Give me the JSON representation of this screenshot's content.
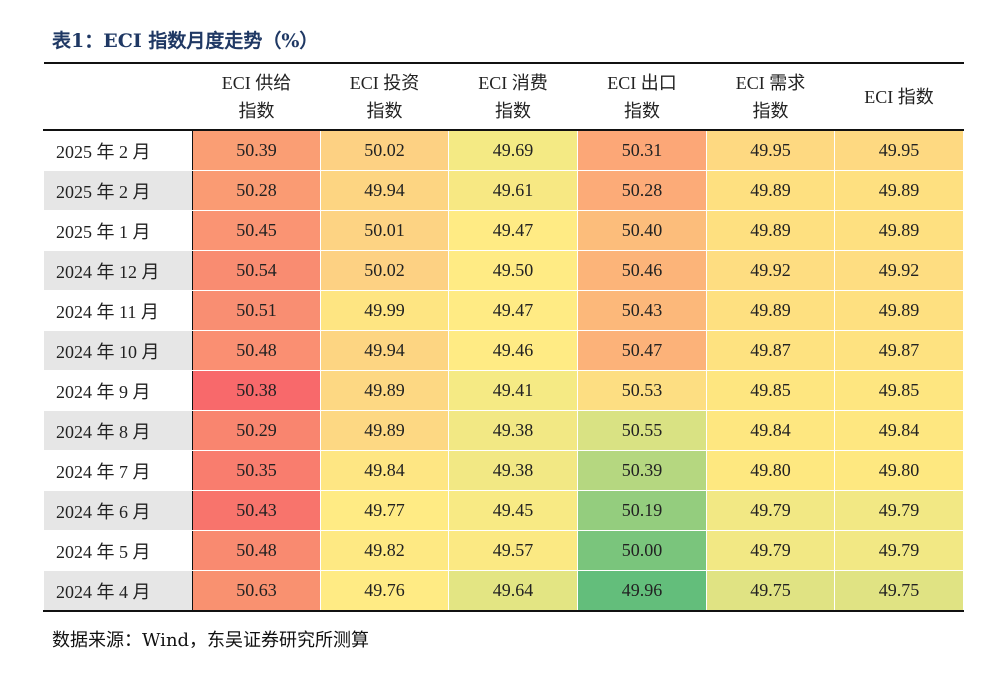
{
  "title": "表1：ECI 指数月度走势（%）",
  "columns": [
    {
      "line1": "ECI 供给",
      "line2": "指数"
    },
    {
      "line1": "ECI 投资",
      "line2": "指数"
    },
    {
      "line1": "ECI 消费",
      "line2": "指数"
    },
    {
      "line1": "ECI 出口",
      "line2": "指数"
    },
    {
      "line1": "ECI 需求",
      "line2": "指数"
    },
    {
      "line1": "ECI 指数",
      "line2": ""
    }
  ],
  "rows": [
    {
      "date": "2025 年 2 月",
      "values": [
        "50.39",
        "50.02",
        "49.69",
        "50.31",
        "49.95",
        "49.95"
      ],
      "colors": [
        "#fa9e74",
        "#fdd183",
        "#f4ea84",
        "#fca777",
        "#fed981",
        "#fed981"
      ]
    },
    {
      "date": "2025 年 2 月",
      "values": [
        "50.28",
        "49.94",
        "49.61",
        "50.28",
        "49.89",
        "49.89"
      ],
      "colors": [
        "#fa9b73",
        "#fdd582",
        "#f7e883",
        "#fcab78",
        "#fee080",
        "#fee080"
      ]
    },
    {
      "date": "2025 年 1 月",
      "values": [
        "50.45",
        "50.01",
        "49.47",
        "50.40",
        "49.89",
        "49.89"
      ],
      "colors": [
        "#fa9473",
        "#fdd383",
        "#ffeb84",
        "#fcbd7b",
        "#fee080",
        "#fee080"
      ]
    },
    {
      "date": "2024 年 12 月",
      "values": [
        "50.54",
        "50.02",
        "49.50",
        "50.46",
        "49.92",
        "49.92"
      ],
      "colors": [
        "#f98c71",
        "#fdd183",
        "#ffeb84",
        "#fcb479",
        "#fedd81",
        "#fedd81"
      ]
    },
    {
      "date": "2024 年 11 月",
      "values": [
        "50.51",
        "49.99",
        "49.47",
        "50.43",
        "49.89",
        "49.89"
      ],
      "colors": [
        "#f98e72",
        "#fee582",
        "#ffeb84",
        "#fcb87a",
        "#fee080",
        "#fee080"
      ]
    },
    {
      "date": "2024 年 10 月",
      "values": [
        "50.48",
        "49.94",
        "49.46",
        "50.47",
        "49.87",
        "49.87"
      ],
      "colors": [
        "#fa8f72",
        "#fdd582",
        "#ffeb84",
        "#fcb279",
        "#fee280",
        "#fee280"
      ]
    },
    {
      "date": "2024 年 9 月",
      "values": [
        "50.38",
        "49.89",
        "49.41",
        "50.53",
        "49.85",
        "49.85"
      ],
      "colors": [
        "#f8696b",
        "#fdd883",
        "#f5ea84",
        "#fdde82",
        "#fee680",
        "#fee680"
      ]
    },
    {
      "date": "2024 年 8 月",
      "values": [
        "50.29",
        "49.89",
        "49.38",
        "50.55",
        "49.84",
        "49.84"
      ],
      "colors": [
        "#f9856f",
        "#fdd883",
        "#f2e884",
        "#d9e283",
        "#fee780",
        "#fee780"
      ]
    },
    {
      "date": "2024 年 7 月",
      "values": [
        "50.35",
        "49.84",
        "49.38",
        "50.39",
        "49.80",
        "49.80"
      ],
      "colors": [
        "#f97d6e",
        "#fee683",
        "#f2e884",
        "#b5d780",
        "#fee880",
        "#fee880"
      ]
    },
    {
      "date": "2024 年 6 月",
      "values": [
        "50.43",
        "49.77",
        "49.45",
        "50.19",
        "49.79",
        "49.79"
      ],
      "colors": [
        "#f8746c",
        "#ffeb84",
        "#f8ea84",
        "#94cd7e",
        "#f2e884",
        "#f2e884"
      ]
    },
    {
      "date": "2024 年 5 月",
      "values": [
        "50.48",
        "49.82",
        "49.57",
        "50.00",
        "49.79",
        "49.79"
      ],
      "colors": [
        "#f98a70",
        "#fee983",
        "#fbe983",
        "#7ac57c",
        "#f2e884",
        "#f2e884"
      ]
    },
    {
      "date": "2024 年 4 月",
      "values": [
        "50.63",
        "49.76",
        "49.64",
        "49.96",
        "49.75",
        "49.75"
      ],
      "colors": [
        "#f99170",
        "#ffeb84",
        "#e3e583",
        "#63be7b",
        "#e0e383",
        "#e0e383"
      ]
    }
  ],
  "source": "数据来源：Wind，东吴证券研究所测算"
}
